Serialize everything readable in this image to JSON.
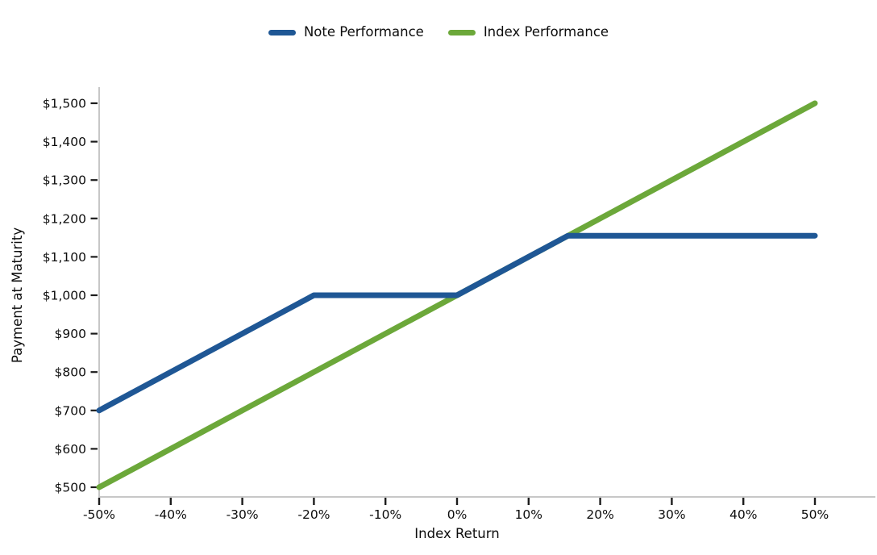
{
  "chart_data": {
    "type": "line",
    "title": "",
    "xlabel": "Index Return",
    "ylabel": "Payment at Maturity",
    "xlim": [
      -50,
      50
    ],
    "ylim": [
      500,
      1500
    ],
    "grid": false,
    "legend_position": "top-center",
    "axis_color": "#c7c7c7",
    "tick_color": "#1c1c1c",
    "text_color": "#0d0d0d",
    "x_ticks": [
      {
        "value": -50,
        "label": "-50%"
      },
      {
        "value": -40,
        "label": "-40%"
      },
      {
        "value": -30,
        "label": "-30%"
      },
      {
        "value": -20,
        "label": "-20%"
      },
      {
        "value": -10,
        "label": "-10%"
      },
      {
        "value": 0,
        "label": "0%"
      },
      {
        "value": 10,
        "label": "10%"
      },
      {
        "value": 20,
        "label": "20%"
      },
      {
        "value": 30,
        "label": "30%"
      },
      {
        "value": 40,
        "label": "40%"
      },
      {
        "value": 50,
        "label": "50%"
      }
    ],
    "y_ticks": [
      {
        "value": 500,
        "label": "$500"
      },
      {
        "value": 600,
        "label": "$600"
      },
      {
        "value": 700,
        "label": "$700"
      },
      {
        "value": 800,
        "label": "$800"
      },
      {
        "value": 900,
        "label": "$900"
      },
      {
        "value": 1000,
        "label": "$1,000"
      },
      {
        "value": 1100,
        "label": "$1,100"
      },
      {
        "value": 1200,
        "label": "$1,200"
      },
      {
        "value": 1300,
        "label": "$1,300"
      },
      {
        "value": 1400,
        "label": "$1,400"
      },
      {
        "value": 1500,
        "label": "$1,500"
      }
    ],
    "series": [
      {
        "name": "Note Performance",
        "color": "#1f5795",
        "points": [
          [
            -50,
            700
          ],
          [
            -20,
            1000
          ],
          [
            0,
            1000
          ],
          [
            15.5,
            1155
          ],
          [
            50,
            1155
          ]
        ]
      },
      {
        "name": "Index Performance",
        "color": "#6ca83a",
        "points": [
          [
            -50,
            500
          ],
          [
            50,
            1500
          ]
        ]
      }
    ]
  }
}
